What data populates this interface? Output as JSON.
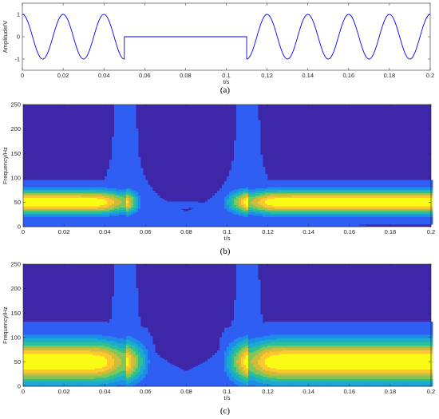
{
  "chart_data": [
    {
      "panel": "(a)",
      "type": "line",
      "xlabel": "t/s",
      "ylabel": "Amplitude/V",
      "xlim": [
        0,
        0.2
      ],
      "ylim": [
        -1.5,
        1.5
      ],
      "xticks": [
        "0",
        "0.02",
        "0.04",
        "0.06",
        "0.08",
        "0.1",
        "0.12",
        "0.14",
        "0.16",
        "0.18",
        "0.2"
      ],
      "yticks": [
        "-1",
        "0",
        "1"
      ],
      "series": [
        {
          "color": "#0000ff",
          "segments": [
            {
              "kind": "cosine",
              "t_start": 0,
              "t_end": 0.05,
              "frequency_hz": 50,
              "amplitude": 1
            },
            {
              "kind": "constant",
              "t_start": 0.05,
              "t_end": 0.11,
              "value": 0
            },
            {
              "kind": "cosine",
              "t_start": 0.11,
              "t_end": 0.2,
              "frequency_hz": 50,
              "amplitude": 1
            }
          ]
        }
      ],
      "grid": false
    },
    {
      "panel": "(b)",
      "type": "heatmap",
      "xlabel": "t/s",
      "ylabel": "Frequency/Hz",
      "xlim": [
        0,
        0.2
      ],
      "ylim": [
        0,
        250
      ],
      "xticks": [
        "0",
        "0.02",
        "0.04",
        "0.06",
        "0.08",
        "0.1",
        "0.12",
        "0.14",
        "0.16",
        "0.18",
        "0.2"
      ],
      "yticks": [
        "0",
        "50",
        "100",
        "150",
        "200",
        "250"
      ],
      "signal_frequency_hz": 50,
      "band_halfwidth_hz": 25,
      "discontinuities_s": [
        0.05,
        0.11
      ],
      "spike_halfwidth_s": 0.004,
      "gap_start_s": 0.06,
      "gap_end_s": 0.095,
      "colormap": [
        "#3e26a8",
        "#2e5ef2",
        "#1d8ee8",
        "#1caacd",
        "#2dc095",
        "#81c757",
        "#d0bc3a",
        "#fdc72f",
        "#f9fb15"
      ]
    },
    {
      "panel": "(c)",
      "type": "heatmap",
      "xlabel": "t/s",
      "ylabel": "Frequency/Hz",
      "xlim": [
        0,
        0.2
      ],
      "ylim": [
        0,
        250
      ],
      "xticks": [
        "0",
        "0.02",
        "0.04",
        "0.06",
        "0.08",
        "0.1",
        "0.12",
        "0.14",
        "0.16",
        "0.18",
        "0.2"
      ],
      "yticks": [
        "0",
        "50",
        "100",
        "150",
        "200",
        "250"
      ],
      "signal_frequency_hz": 50,
      "band_halfwidth_hz": 45,
      "outer_band_hz": [
        30,
        120
      ],
      "discontinuities_s": [
        0.05,
        0.11
      ],
      "spike_halfwidth_s": 0.004,
      "gap_start_s": 0.065,
      "gap_end_s": 0.095,
      "colormap": [
        "#3e26a8",
        "#2e5ef2",
        "#1d8ee8",
        "#1caacd",
        "#2dc095",
        "#81c757",
        "#d0bc3a",
        "#fdc72f",
        "#f9fb15"
      ]
    }
  ],
  "captions": [
    "(a)",
    "(b)",
    "(c)"
  ]
}
